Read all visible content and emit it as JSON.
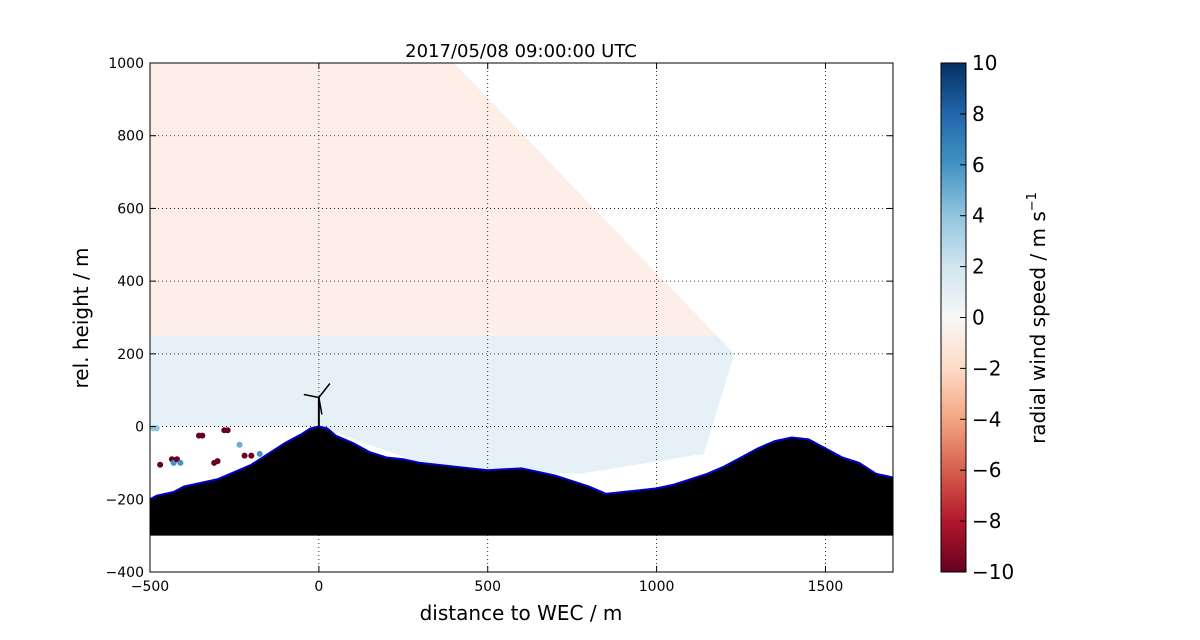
{
  "chart_data": {
    "type": "heatmap",
    "title": "2017/05/08 09:00:00 UTC",
    "xlabel": "distance to WEC / m",
    "ylabel": "rel. height / m",
    "xlim": [
      -500,
      1700
    ],
    "ylim": [
      -400,
      1000
    ],
    "x_ticks": [
      -500,
      0,
      500,
      1000,
      1500
    ],
    "x_tick_labels": [
      "−500",
      "0",
      "500",
      "1000",
      "1500"
    ],
    "y_ticks": [
      -400,
      -200,
      0,
      200,
      400,
      600,
      800,
      1000
    ],
    "y_tick_labels": [
      "−400",
      "−200",
      "0",
      "200",
      "400",
      "600",
      "800",
      "1000"
    ],
    "grid": true,
    "colorbar": {
      "label": "radial wind speed / m s",
      "label_superscript": "−1",
      "colormap": "RdBu",
      "range": [
        -10,
        10
      ],
      "ticks": [
        10,
        8,
        6,
        4,
        2,
        0,
        -2,
        -4,
        -6,
        -8,
        -10
      ],
      "tick_labels": [
        "10",
        "8",
        "6",
        "4",
        "2",
        "0",
        "−2",
        "−4",
        "−6",
        "−8",
        "−10"
      ]
    },
    "field": {
      "description": "RHI scan sector of radial wind speed",
      "sector_polygon": [
        [
          -500,
          1000
        ],
        [
          400,
          1000
        ],
        [
          1230,
          200
        ],
        [
          1140,
          -75
        ],
        [
          770,
          -130
        ],
        [
          600,
          -125
        ],
        [
          300,
          -100
        ],
        [
          0,
          0
        ],
        [
          -500,
          0
        ]
      ],
      "layers": [
        {
          "height_min": 250,
          "height_max": 1000,
          "radial_wind_speed": -1.5
        },
        {
          "height_min": 0,
          "height_max": 250,
          "radial_wind_speed": 2.0
        }
      ]
    },
    "terrain_profile": {
      "x": [
        -500,
        -480,
        -430,
        -400,
        -300,
        -250,
        -200,
        -150,
        -100,
        -50,
        -25,
        0,
        25,
        50,
        100,
        150,
        200,
        250,
        300,
        400,
        500,
        600,
        650,
        700,
        750,
        800,
        850,
        900,
        1000,
        1050,
        1100,
        1150,
        1200,
        1250,
        1300,
        1350,
        1400,
        1450,
        1500,
        1550,
        1600,
        1650,
        1700
      ],
      "height": [
        -200,
        -190,
        -180,
        -165,
        -145,
        -125,
        -105,
        -75,
        -45,
        -20,
        -5,
        0,
        -5,
        -25,
        -45,
        -70,
        -85,
        -90,
        -100,
        -110,
        -120,
        -115,
        -125,
        -135,
        -150,
        -165,
        -185,
        -180,
        -170,
        -160,
        -145,
        -130,
        -110,
        -85,
        -60,
        -40,
        -30,
        -35,
        -60,
        -85,
        -100,
        -130,
        -140
      ]
    },
    "turbine": {
      "x": 0,
      "hub_height": 80,
      "label": "WEC"
    },
    "scatter_points": [
      {
        "x": -490,
        "y": -5,
        "value": 4
      },
      {
        "x": -480,
        "y": -5,
        "value": 4
      },
      {
        "x": -435,
        "y": -90,
        "value": -10
      },
      {
        "x": -430,
        "y": -100,
        "value": 6
      },
      {
        "x": -420,
        "y": -90,
        "value": -10
      },
      {
        "x": -410,
        "y": -100,
        "value": 6
      },
      {
        "x": -470,
        "y": -105,
        "value": -10
      },
      {
        "x": -355,
        "y": -25,
        "value": -10
      },
      {
        "x": -345,
        "y": -25,
        "value": -10
      },
      {
        "x": -310,
        "y": -100,
        "value": -10
      },
      {
        "x": -300,
        "y": -95,
        "value": -10
      },
      {
        "x": -280,
        "y": -10,
        "value": -10
      },
      {
        "x": -270,
        "y": -10,
        "value": -10
      },
      {
        "x": -235,
        "y": -50,
        "value": 5
      },
      {
        "x": -220,
        "y": -80,
        "value": -10
      },
      {
        "x": -200,
        "y": -80,
        "value": -10
      },
      {
        "x": -175,
        "y": -75,
        "value": 6
      }
    ]
  }
}
